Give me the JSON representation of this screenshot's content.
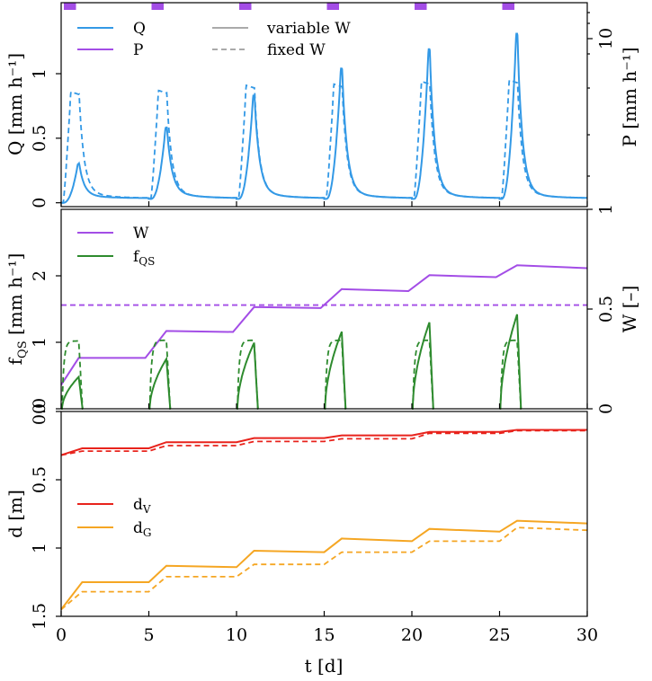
{
  "chart_data": [
    {
      "panel": "top",
      "type": "line",
      "xlim": [
        0,
        30
      ],
      "ylabel_left": "Q [mm h⁻¹]",
      "ylabel_right": "P [mm h⁻¹]",
      "yticks_left": [
        "0",
        "0.5",
        "1"
      ],
      "yticks_right": [
        "10"
      ],
      "ylim_left": [
        -0.03,
        1.55
      ],
      "legend": {
        "position": "top-left",
        "entries": [
          {
            "label": "Q",
            "color": "#3399e6",
            "style": "solid"
          },
          {
            "label": "P",
            "color": "#a34de6",
            "style": "solid"
          },
          {
            "label": "variable W",
            "color": "#aaaaaa",
            "style": "solid"
          },
          {
            "label": "fixed W",
            "color": "#aaaaaa",
            "style": "dashed"
          }
        ]
      },
      "precip_events": [
        {
          "start": 0.0,
          "end": 1.0
        },
        {
          "start": 5.0,
          "end": 6.0
        },
        {
          "start": 10.0,
          "end": 11.0
        },
        {
          "start": 15.0,
          "end": 16.0
        },
        {
          "start": 20.0,
          "end": 21.0
        },
        {
          "start": 25.0,
          "end": 26.0
        }
      ],
      "events": {
        "starts": [
          0,
          5,
          10,
          15,
          20,
          25
        ],
        "peak_variable": [
          0.3,
          0.58,
          0.83,
          1.04,
          1.19,
          1.31
        ],
        "peak_fixed": [
          0.86,
          0.87,
          0.91,
          0.92,
          0.94,
          0.95
        ],
        "initial_value": [
          0.0,
          0.03,
          0.03,
          0.03,
          0.03,
          0.03
        ]
      }
    },
    {
      "panel": "middle",
      "type": "line",
      "xlim": [
        0,
        30
      ],
      "ylabel_left": "f",
      "ylabel_left_sub": "QS",
      "ylabel_left_unit": " [mm h⁻¹]",
      "ylabel_right": "W [–]",
      "yticks_left": [
        "0",
        "1",
        "2"
      ],
      "yticks_right": [
        "0",
        "0.5",
        "1"
      ],
      "ylim_left": [
        0,
        3.0
      ],
      "ylim_right": [
        0,
        1
      ],
      "legend": {
        "position": "top-left",
        "entries": [
          {
            "label": "W",
            "color": "#a34de6",
            "style": "solid"
          },
          {
            "label": "f",
            "sub": "QS",
            "color": "#2e8b2e",
            "style": "solid"
          }
        ]
      },
      "W_variable": {
        "x": [
          0,
          1,
          4.8,
          6,
          9.8,
          11,
          14.8,
          16,
          19.8,
          21,
          24.8,
          26,
          30
        ],
        "y": [
          0.12,
          0.255,
          0.255,
          0.39,
          0.385,
          0.51,
          0.505,
          0.6,
          0.59,
          0.67,
          0.66,
          0.72,
          0.705
        ]
      },
      "W_fixed": 0.52,
      "fQS_peak_variable": [
        0.48,
        0.75,
        0.99,
        1.16,
        1.3,
        1.42
      ],
      "fQS_peak_fixed": [
        1.02,
        1.03,
        1.03,
        1.03,
        1.03,
        1.03
      ]
    },
    {
      "panel": "bottom",
      "type": "line",
      "xlim": [
        0,
        30
      ],
      "ylabel": "d [m]",
      "yticks": [
        "0.0",
        "0.5",
        "1",
        "1.5"
      ],
      "ylim": [
        1.5,
        0
      ],
      "xlabel": "t [d]",
      "xticks": [
        "0",
        "5",
        "10",
        "15",
        "20",
        "25",
        "30"
      ],
      "legend": {
        "position": "center-left",
        "entries": [
          {
            "label": "d",
            "sub": "V",
            "color": "#e8231c",
            "style": "solid"
          },
          {
            "label": "d",
            "sub": "G",
            "color": "#f5a623",
            "style": "solid"
          }
        ]
      },
      "dV_variable": {
        "x": [
          0,
          1.2,
          5,
          6,
          10,
          11,
          15,
          16,
          20,
          21,
          25,
          26,
          30
        ],
        "y": [
          0.32,
          0.27,
          0.27,
          0.225,
          0.225,
          0.195,
          0.195,
          0.175,
          0.175,
          0.15,
          0.15,
          0.135,
          0.135
        ]
      },
      "dV_fixed": {
        "x": [
          0,
          1.2,
          5,
          6,
          10,
          11,
          15,
          16,
          20,
          21,
          25,
          26,
          30
        ],
        "y": [
          0.32,
          0.29,
          0.29,
          0.25,
          0.25,
          0.22,
          0.22,
          0.2,
          0.2,
          0.16,
          0.16,
          0.14,
          0.14
        ]
      },
      "dG_variable": {
        "x": [
          0,
          1.2,
          5,
          6,
          10,
          11,
          15,
          16,
          20,
          21,
          25,
          26,
          30
        ],
        "y": [
          1.45,
          1.25,
          1.25,
          1.13,
          1.14,
          1.02,
          1.03,
          0.93,
          0.95,
          0.86,
          0.88,
          0.8,
          0.82
        ]
      },
      "dG_fixed": {
        "x": [
          0,
          1.2,
          5,
          6,
          10,
          11,
          15,
          16,
          20,
          21,
          25,
          26,
          30
        ],
        "y": [
          1.45,
          1.32,
          1.32,
          1.21,
          1.21,
          1.12,
          1.12,
          1.03,
          1.03,
          0.95,
          0.95,
          0.85,
          0.87
        ]
      }
    }
  ]
}
